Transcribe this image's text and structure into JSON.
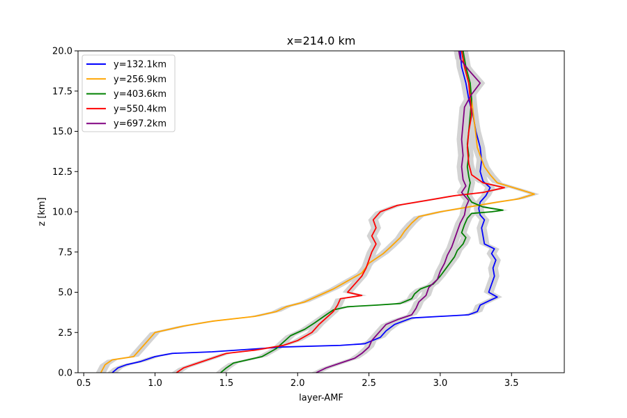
{
  "chart_data": {
    "type": "line",
    "title": "x=214.0 km",
    "xlabel": "layer-AMF",
    "ylabel": "z [km]",
    "xlim": [
      0.46,
      3.87
    ],
    "ylim": [
      0,
      20
    ],
    "xticks": [
      0.5,
      1.0,
      1.5,
      2.0,
      2.5,
      3.0,
      3.5
    ],
    "xtick_labels": [
      "0.5",
      "1.0",
      "1.5",
      "2.0",
      "2.5",
      "3.0",
      "3.5"
    ],
    "yticks": [
      0,
      2.5,
      5,
      7.5,
      10,
      12.5,
      15,
      17.5,
      20
    ],
    "ytick_labels": [
      "0.0",
      "2.5",
      "5.0",
      "7.5",
      "10.0",
      "12.5",
      "15.0",
      "17.5",
      "20.0"
    ],
    "grid": false,
    "legend_position": "top-left",
    "uncertainty_band_color": "#d3d3d3",
    "series": [
      {
        "name": "y=132.1km",
        "color": "#0000ff",
        "points": [
          [
            0.7,
            0.0
          ],
          [
            0.74,
            0.3
          ],
          [
            0.8,
            0.5
          ],
          [
            0.9,
            0.7
          ],
          [
            1.0,
            1.0
          ],
          [
            1.12,
            1.2
          ],
          [
            1.4,
            1.3
          ],
          [
            1.9,
            1.6
          ],
          [
            2.3,
            1.7
          ],
          [
            2.47,
            1.8
          ],
          [
            2.58,
            2.2
          ],
          [
            2.62,
            2.6
          ],
          [
            2.68,
            3.0
          ],
          [
            2.8,
            3.4
          ],
          [
            3.0,
            3.5
          ],
          [
            3.2,
            3.6
          ],
          [
            3.26,
            3.8
          ],
          [
            3.28,
            4.2
          ],
          [
            3.35,
            4.5
          ],
          [
            3.4,
            4.7
          ],
          [
            3.34,
            5.0
          ],
          [
            3.36,
            5.5
          ],
          [
            3.38,
            6.0
          ],
          [
            3.37,
            6.5
          ],
          [
            3.39,
            7.0
          ],
          [
            3.36,
            7.4
          ],
          [
            3.38,
            7.7
          ],
          [
            3.31,
            8.0
          ],
          [
            3.3,
            8.5
          ],
          [
            3.29,
            9.0
          ],
          [
            3.31,
            9.5
          ],
          [
            3.28,
            9.8
          ],
          [
            3.27,
            10.2
          ],
          [
            3.28,
            10.6
          ],
          [
            3.32,
            11.0
          ],
          [
            3.35,
            11.5
          ],
          [
            3.3,
            11.9
          ],
          [
            3.28,
            12.5
          ],
          [
            3.29,
            13.2
          ],
          [
            3.28,
            14.0
          ],
          [
            3.25,
            15.0
          ],
          [
            3.23,
            16.0
          ],
          [
            3.2,
            17.0
          ],
          [
            3.18,
            18.0
          ],
          [
            3.15,
            19.0
          ],
          [
            3.14,
            20.0
          ]
        ]
      },
      {
        "name": "y=256.9km",
        "color": "#ffa500",
        "points": [
          [
            0.62,
            0.0
          ],
          [
            0.65,
            0.5
          ],
          [
            0.7,
            0.8
          ],
          [
            0.85,
            1.0
          ],
          [
            0.9,
            1.5
          ],
          [
            0.95,
            2.0
          ],
          [
            1.0,
            2.5
          ],
          [
            1.2,
            2.9
          ],
          [
            1.4,
            3.2
          ],
          [
            1.7,
            3.5
          ],
          [
            1.85,
            3.8
          ],
          [
            1.92,
            4.1
          ],
          [
            2.05,
            4.4
          ],
          [
            2.15,
            4.8
          ],
          [
            2.25,
            5.2
          ],
          [
            2.35,
            5.7
          ],
          [
            2.45,
            6.2
          ],
          [
            2.5,
            6.8
          ],
          [
            2.6,
            7.4
          ],
          [
            2.65,
            7.8
          ],
          [
            2.72,
            8.4
          ],
          [
            2.75,
            8.8
          ],
          [
            2.8,
            9.3
          ],
          [
            2.85,
            9.7
          ],
          [
            3.0,
            10.0
          ],
          [
            3.2,
            10.3
          ],
          [
            3.4,
            10.6
          ],
          [
            3.55,
            10.8
          ],
          [
            3.66,
            11.1
          ],
          [
            3.55,
            11.4
          ],
          [
            3.4,
            11.8
          ],
          [
            3.35,
            12.3
          ],
          [
            3.31,
            12.8
          ],
          [
            3.28,
            13.5
          ],
          [
            3.26,
            14.0
          ],
          [
            3.25,
            14.8
          ],
          [
            3.24,
            15.5
          ],
          [
            3.23,
            16.2
          ],
          [
            3.22,
            17.0
          ],
          [
            3.2,
            18.0
          ],
          [
            3.17,
            19.0
          ],
          [
            3.15,
            20.0
          ]
        ]
      },
      {
        "name": "y=403.6km",
        "color": "#008000",
        "points": [
          [
            1.46,
            0.0
          ],
          [
            1.5,
            0.3
          ],
          [
            1.55,
            0.6
          ],
          [
            1.65,
            0.8
          ],
          [
            1.75,
            1.0
          ],
          [
            1.85,
            1.5
          ],
          [
            1.9,
            1.9
          ],
          [
            1.95,
            2.3
          ],
          [
            2.05,
            2.7
          ],
          [
            2.12,
            3.1
          ],
          [
            2.2,
            3.6
          ],
          [
            2.25,
            3.9
          ],
          [
            2.35,
            4.1
          ],
          [
            2.55,
            4.2
          ],
          [
            2.72,
            4.3
          ],
          [
            2.8,
            4.6
          ],
          [
            2.82,
            4.9
          ],
          [
            2.86,
            5.2
          ],
          [
            2.95,
            5.5
          ],
          [
            3.0,
            6.0
          ],
          [
            3.05,
            6.6
          ],
          [
            3.1,
            7.2
          ],
          [
            3.12,
            7.6
          ],
          [
            3.16,
            8.0
          ],
          [
            3.18,
            8.4
          ],
          [
            3.15,
            8.7
          ],
          [
            3.17,
            9.2
          ],
          [
            3.19,
            9.6
          ],
          [
            3.22,
            9.9
          ],
          [
            3.36,
            10.0
          ],
          [
            3.44,
            10.1
          ],
          [
            3.3,
            10.3
          ],
          [
            3.22,
            10.6
          ],
          [
            3.19,
            11.0
          ],
          [
            3.2,
            11.4
          ],
          [
            3.21,
            11.8
          ],
          [
            3.2,
            12.2
          ],
          [
            3.19,
            12.8
          ],
          [
            3.2,
            13.5
          ],
          [
            3.19,
            14.2
          ],
          [
            3.2,
            15.0
          ],
          [
            3.21,
            16.0
          ],
          [
            3.22,
            17.0
          ],
          [
            3.21,
            18.0
          ],
          [
            3.18,
            19.0
          ],
          [
            3.16,
            20.0
          ]
        ]
      },
      {
        "name": "y=550.4km",
        "color": "#ff0000",
        "points": [
          [
            1.15,
            0.0
          ],
          [
            1.2,
            0.3
          ],
          [
            1.3,
            0.6
          ],
          [
            1.4,
            0.9
          ],
          [
            1.5,
            1.2
          ],
          [
            1.7,
            1.4
          ],
          [
            1.9,
            1.7
          ],
          [
            2.0,
            2.0
          ],
          [
            2.1,
            2.5
          ],
          [
            2.15,
            3.0
          ],
          [
            2.2,
            3.4
          ],
          [
            2.25,
            3.8
          ],
          [
            2.28,
            4.2
          ],
          [
            2.3,
            4.6
          ],
          [
            2.45,
            4.8
          ],
          [
            2.35,
            5.0
          ],
          [
            2.4,
            5.5
          ],
          [
            2.45,
            6.0
          ],
          [
            2.48,
            6.5
          ],
          [
            2.5,
            7.0
          ],
          [
            2.52,
            7.5
          ],
          [
            2.55,
            8.0
          ],
          [
            2.52,
            8.5
          ],
          [
            2.55,
            9.0
          ],
          [
            2.53,
            9.5
          ],
          [
            2.58,
            10.0
          ],
          [
            2.7,
            10.4
          ],
          [
            2.9,
            10.7
          ],
          [
            3.1,
            11.0
          ],
          [
            3.3,
            11.2
          ],
          [
            3.45,
            11.5
          ],
          [
            3.3,
            11.8
          ],
          [
            3.22,
            12.3
          ],
          [
            3.2,
            13.0
          ],
          [
            3.19,
            14.0
          ],
          [
            3.2,
            15.0
          ],
          [
            3.22,
            16.0
          ],
          [
            3.21,
            17.0
          ],
          [
            3.2,
            18.0
          ],
          [
            3.17,
            19.0
          ],
          [
            3.15,
            20.0
          ]
        ]
      },
      {
        "name": "y=697.2km",
        "color": "#800080",
        "points": [
          [
            2.13,
            0.0
          ],
          [
            2.2,
            0.3
          ],
          [
            2.3,
            0.6
          ],
          [
            2.4,
            0.9
          ],
          [
            2.45,
            1.2
          ],
          [
            2.5,
            1.6
          ],
          [
            2.52,
            2.0
          ],
          [
            2.55,
            2.3
          ],
          [
            2.58,
            2.6
          ],
          [
            2.62,
            3.0
          ],
          [
            2.7,
            3.3
          ],
          [
            2.8,
            3.6
          ],
          [
            2.83,
            4.0
          ],
          [
            2.85,
            4.4
          ],
          [
            2.9,
            4.8
          ],
          [
            2.92,
            5.3
          ],
          [
            2.98,
            5.8
          ],
          [
            3.0,
            6.3
          ],
          [
            3.03,
            6.8
          ],
          [
            3.05,
            7.3
          ],
          [
            3.08,
            7.8
          ],
          [
            3.1,
            8.3
          ],
          [
            3.12,
            8.8
          ],
          [
            3.14,
            9.3
          ],
          [
            3.17,
            9.8
          ],
          [
            3.18,
            10.3
          ],
          [
            3.2,
            10.7
          ],
          [
            3.15,
            11.2
          ],
          [
            3.18,
            11.6
          ],
          [
            3.16,
            12.0
          ],
          [
            3.15,
            12.8
          ],
          [
            3.16,
            13.5
          ],
          [
            3.15,
            14.5
          ],
          [
            3.16,
            15.5
          ],
          [
            3.17,
            16.5
          ],
          [
            3.22,
            17.3
          ],
          [
            3.28,
            18.0
          ],
          [
            3.2,
            18.8
          ],
          [
            3.14,
            19.5
          ],
          [
            3.13,
            20.0
          ]
        ]
      }
    ]
  }
}
